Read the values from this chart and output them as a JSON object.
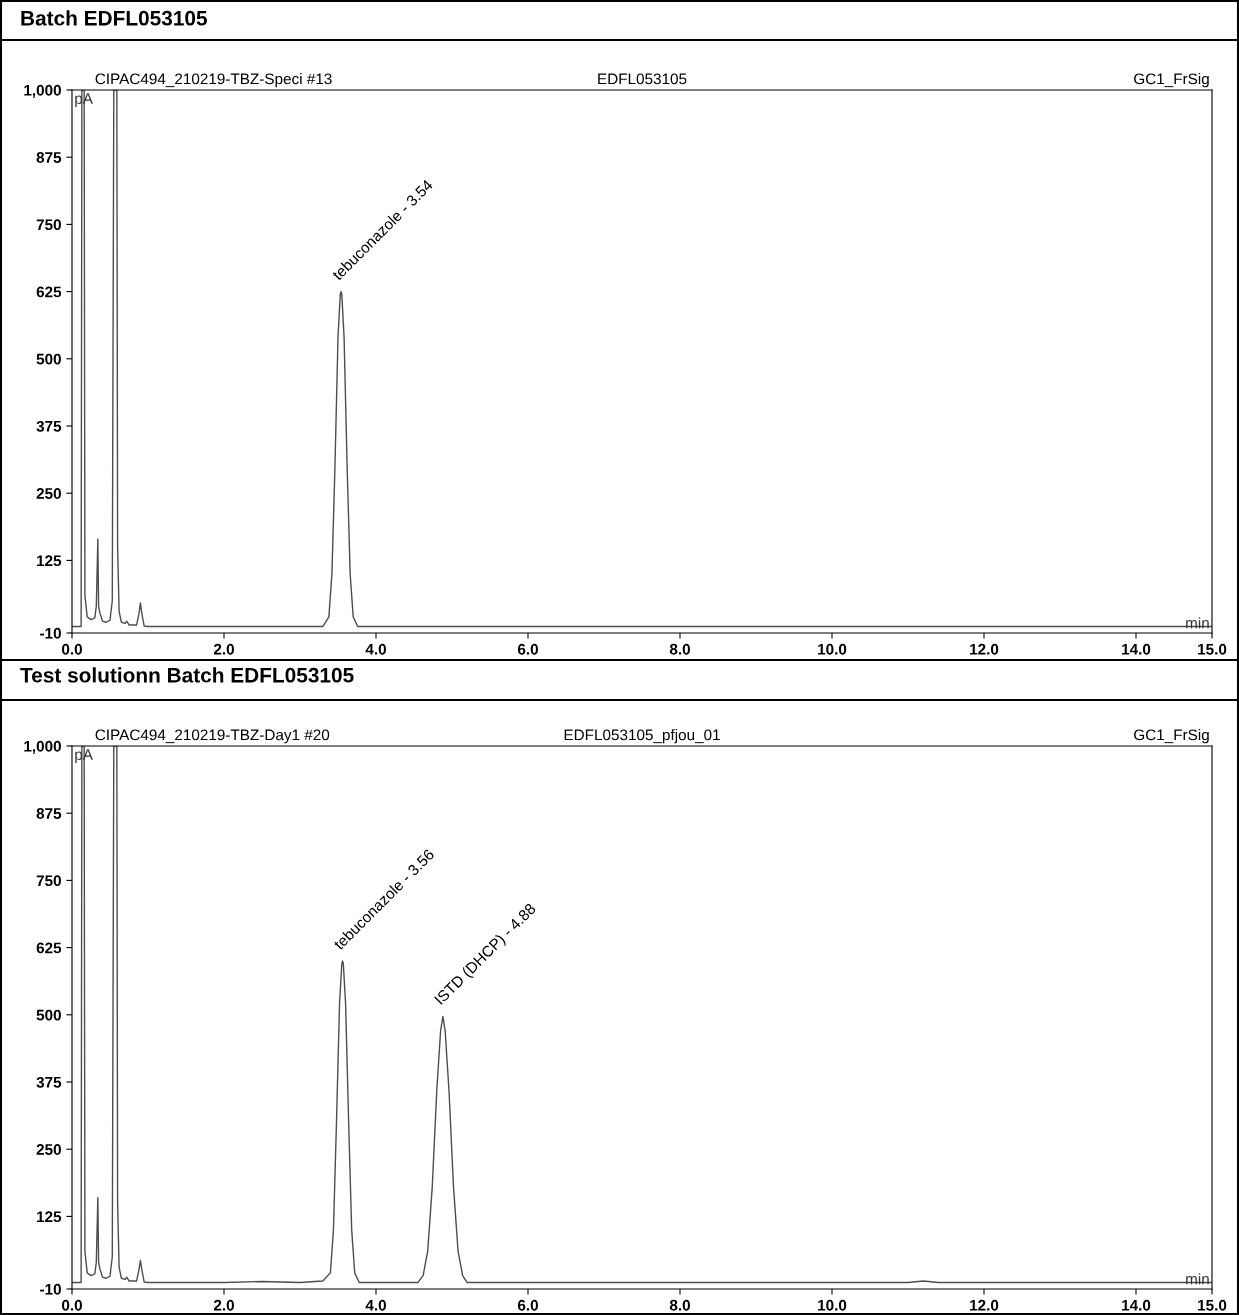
{
  "chart_data": [
    {
      "type": "line",
      "title": "Batch EDFL053105",
      "xlabel": "min",
      "ylabel": "pA",
      "annotations": [
        "CIPAC494_210219-TBZ-Speci #13",
        "EDFL053105",
        "GC1_FrSig",
        {
          "text": "tebuconazole - 3.54",
          "x": 3.54,
          "y": 625
        }
      ],
      "series": [
        {
          "color": "#4d4d4d",
          "x": [
            0.0,
            0.12,
            0.13,
            0.16,
            0.17,
            0.2,
            0.25,
            0.3,
            0.32,
            0.34,
            0.35,
            0.37,
            0.38,
            0.4,
            0.45,
            0.5,
            0.53,
            0.55,
            0.59,
            0.6,
            0.62,
            0.65,
            0.7,
            0.72,
            0.75,
            0.85,
            0.88,
            0.9,
            0.92,
            0.95,
            1.0,
            3.3,
            3.38,
            3.42,
            3.46,
            3.5,
            3.53,
            3.54,
            3.55,
            3.58,
            3.62,
            3.66,
            3.7,
            3.76,
            15.0
          ],
          "values": [
            2,
            2,
            1000,
            1000,
            60,
            20,
            15,
            18,
            40,
            165,
            40,
            25,
            22,
            12,
            10,
            14,
            50,
            1000,
            1000,
            150,
            30,
            10,
            8,
            12,
            5,
            5,
            25,
            46,
            25,
            3,
            2,
            2,
            20,
            100,
            300,
            540,
            620,
            625,
            620,
            540,
            300,
            100,
            20,
            2,
            2
          ]
        }
      ],
      "xlim": [
        0,
        15
      ],
      "ylim": [
        -10,
        1000
      ],
      "xticks": [
        {
          "value": 0,
          "label": "0.0"
        },
        {
          "value": 2,
          "label": "2.0"
        },
        {
          "value": 4,
          "label": "4.0"
        },
        {
          "value": 6,
          "label": "6.0"
        },
        {
          "value": 8,
          "label": "8.0"
        },
        {
          "value": 10,
          "label": "10.0"
        },
        {
          "value": 12,
          "label": "12.0"
        },
        {
          "value": 14,
          "label": "14.0"
        },
        {
          "value": 15,
          "label": "15.0"
        }
      ],
      "yticks": [
        -10,
        125,
        250,
        375,
        500,
        625,
        750,
        875,
        {
          "value": 1000,
          "label": "1,000"
        }
      ],
      "grid": false,
      "legend": false
    },
    {
      "type": "line",
      "title": "Test solutionn Batch EDFL053105",
      "xlabel": "min",
      "ylabel": "pA",
      "annotations": [
        "CIPAC494_210219-TBZ-Day1 #20",
        "EDFL053105_pfjou_01",
        "GC1_FrSig",
        {
          "text": "tebuconazole - 3.56",
          "x": 3.56,
          "y": 600
        },
        {
          "text": "ISTD (DHCP) - 4.88",
          "x": 4.88,
          "y": 497
        }
      ],
      "series": [
        {
          "color": "#4d4d4d",
          "x": [
            0.0,
            0.12,
            0.13,
            0.16,
            0.17,
            0.2,
            0.25,
            0.3,
            0.32,
            0.34,
            0.35,
            0.37,
            0.38,
            0.4,
            0.45,
            0.5,
            0.53,
            0.55,
            0.59,
            0.6,
            0.62,
            0.65,
            0.7,
            0.72,
            0.75,
            0.85,
            0.88,
            0.9,
            0.92,
            0.95,
            1.0,
            2.0,
            2.5,
            3.0,
            3.3,
            3.4,
            3.44,
            3.48,
            3.52,
            3.55,
            3.56,
            3.57,
            3.6,
            3.64,
            3.68,
            3.72,
            3.78,
            4.55,
            4.62,
            4.68,
            4.74,
            4.8,
            4.85,
            4.88,
            4.91,
            4.96,
            5.02,
            5.08,
            5.14,
            5.2,
            11.0,
            11.2,
            11.4,
            15.0
          ],
          "values": [
            2,
            2,
            1000,
            1000,
            60,
            20,
            15,
            18,
            40,
            160,
            40,
            25,
            22,
            12,
            10,
            14,
            50,
            1000,
            1000,
            150,
            30,
            10,
            8,
            12,
            5,
            5,
            25,
            43,
            25,
            3,
            2,
            2,
            4,
            2,
            5,
            20,
            100,
            300,
            520,
            595,
            600,
            595,
            520,
            300,
            100,
            20,
            2,
            2,
            15,
            60,
            180,
            360,
            470,
            497,
            470,
            360,
            180,
            60,
            15,
            2,
            2,
            5,
            2,
            2
          ]
        }
      ],
      "xlim": [
        0,
        15
      ],
      "ylim": [
        -10,
        1000
      ],
      "xticks": [
        {
          "value": 0,
          "label": "0.0"
        },
        {
          "value": 2,
          "label": "2.0"
        },
        {
          "value": 4,
          "label": "4.0"
        },
        {
          "value": 6,
          "label": "6.0"
        },
        {
          "value": 8,
          "label": "8.0"
        },
        {
          "value": 10,
          "label": "10.0"
        },
        {
          "value": 12,
          "label": "12.0"
        },
        {
          "value": 14,
          "label": "14.0"
        },
        {
          "value": 15,
          "label": "15.0"
        }
      ],
      "yticks": [
        -10,
        125,
        250,
        375,
        500,
        625,
        750,
        875,
        {
          "value": 1000,
          "label": "1,000"
        }
      ],
      "grid": false,
      "legend": false
    }
  ]
}
